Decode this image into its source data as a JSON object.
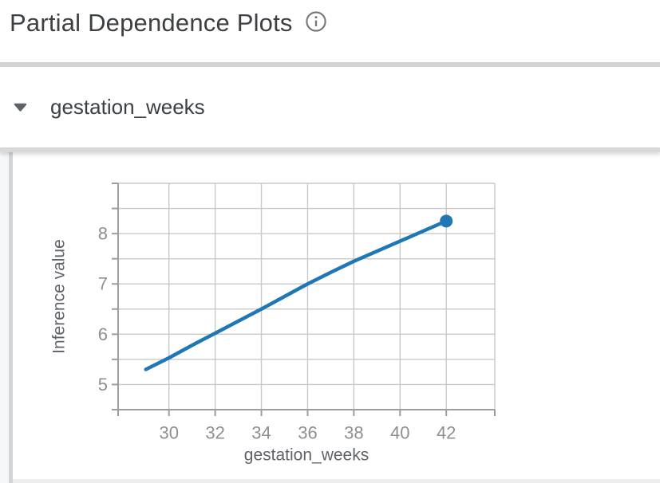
{
  "header": {
    "title": "Partial Dependence Plots"
  },
  "section": {
    "label": "gestation_weeks",
    "expanded": true
  },
  "chart_data": {
    "type": "line",
    "title": "",
    "xlabel": "gestation_weeks",
    "ylabel": "Inference value",
    "x": [
      29,
      30,
      31,
      32,
      33,
      34,
      35,
      36,
      37,
      38,
      39,
      40,
      41,
      42
    ],
    "y": [
      5.3,
      5.53,
      5.78,
      6.02,
      6.26,
      6.5,
      6.75,
      7.0,
      7.23,
      7.45,
      7.65,
      7.85,
      8.05,
      8.25
    ],
    "x_ticks": [
      30,
      32,
      34,
      36,
      38,
      40,
      42
    ],
    "y_ticks": [
      5,
      6,
      7,
      8
    ],
    "y_grid_step": 0.5,
    "xlim": [
      27.8,
      44.1
    ],
    "ylim": [
      4.5,
      9.0
    ],
    "grid": true,
    "legend": "none",
    "line_color": "#1f77b4",
    "endpoint_dot": {
      "x": 42,
      "y": 8.25
    }
  },
  "colors": {
    "accent_blue": "#1f77b4",
    "title_text": "#3c4043",
    "axis_title_text": "#5f6368",
    "tick_text": "#8f8f8f",
    "divider": "#d3d3d8",
    "gridline": "#c9c9c9",
    "axis_line": "#9e9e9e"
  },
  "icons": {
    "info": "info-icon",
    "collapse": "arrow-drop-down-icon"
  }
}
